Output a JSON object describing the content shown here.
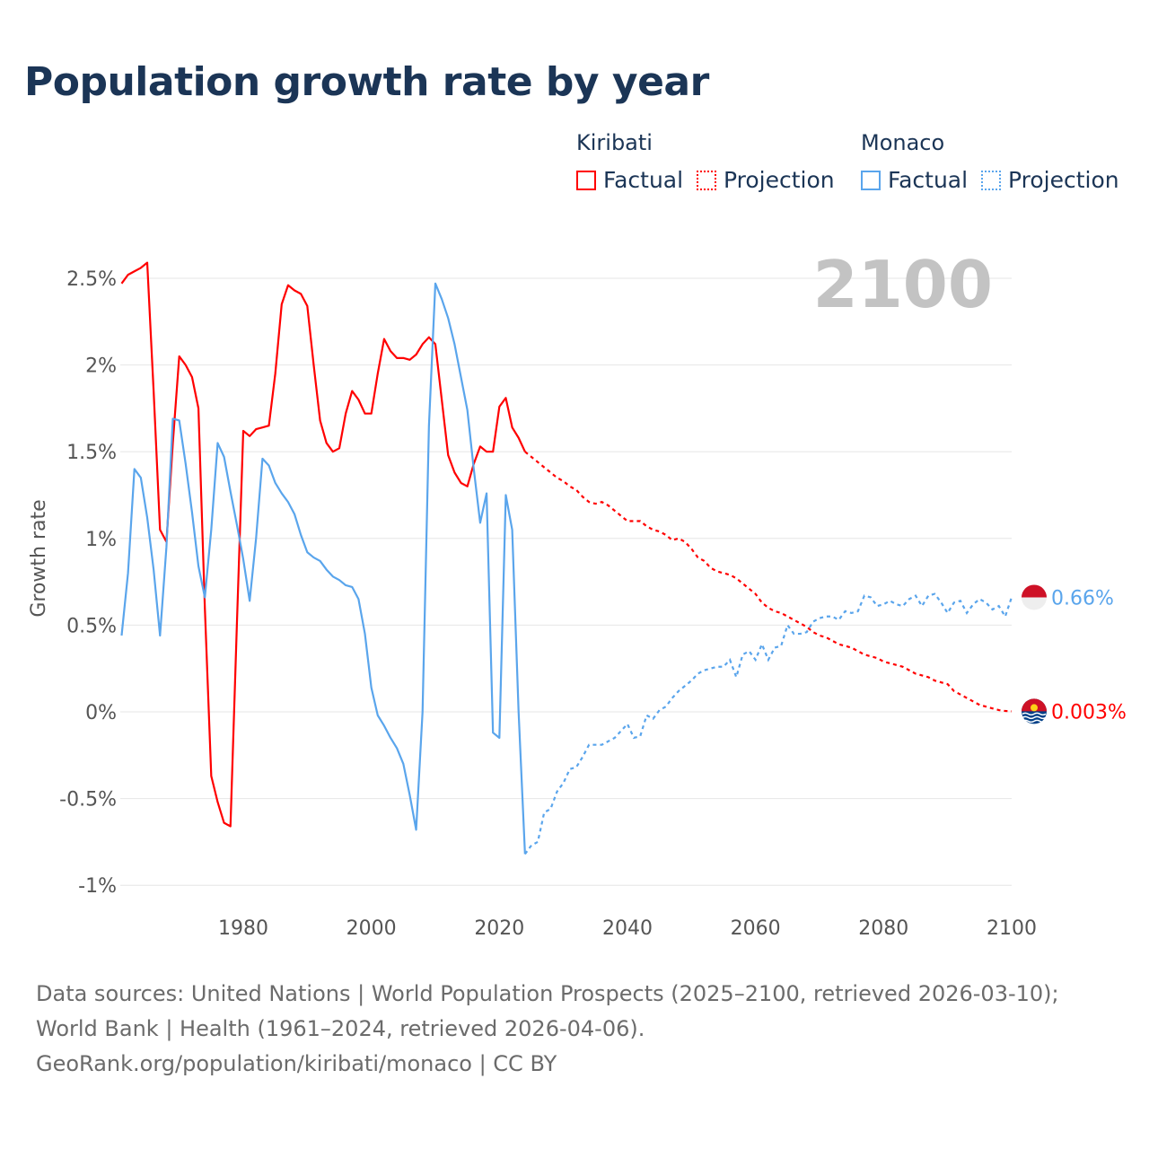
{
  "title": "Population growth rate by year",
  "legend": {
    "groups": [
      {
        "name": "Kiribati",
        "factual": "Factual",
        "projection": "Projection",
        "color": "#ff0000"
      },
      {
        "name": "Monaco",
        "factual": "Factual",
        "projection": "Projection",
        "color": "#5aa5ec"
      }
    ]
  },
  "footer": {
    "sources": "Data sources: United Nations | World Population Prospects (2025–2100, retrieved 2026-03-10); World Bank | Health (1961–2024, retrieved 2026-04-06).",
    "credit": "GeoRank.org/population/kiribati/monaco | CC BY"
  },
  "chart_data": {
    "type": "line",
    "title": "Population growth rate by year",
    "ylabel": "Growth rate",
    "xlabel": "",
    "year_label": "2100",
    "xlim": [
      1961,
      2100
    ],
    "ylim": [
      -1,
      2.6
    ],
    "x_ticks": [
      1980,
      2000,
      2020,
      2040,
      2060,
      2080,
      2100
    ],
    "y_ticks": [
      {
        "value": 2.5,
        "label": "2.5%"
      },
      {
        "value": 2,
        "label": "2%"
      },
      {
        "value": 1.5,
        "label": "1.5%"
      },
      {
        "value": 1,
        "label": "1%"
      },
      {
        "value": 0.5,
        "label": "0.5%"
      },
      {
        "value": 0,
        "label": "0%"
      },
      {
        "value": -0.5,
        "label": "-0.5%"
      },
      {
        "value": -1,
        "label": "-1%"
      }
    ],
    "grid": true,
    "series": [
      {
        "name": "Kiribati",
        "color": "#ff0000",
        "end_label": "0.003%",
        "flag": "kiribati-flag",
        "factual_start": 1961,
        "factual": [
          2.47,
          2.52,
          2.54,
          2.56,
          2.59,
          1.85,
          1.05,
          0.98,
          1.55,
          2.05,
          2.0,
          1.93,
          1.75,
          0.6,
          -0.37,
          -0.52,
          -0.64,
          -0.66,
          0.5,
          1.62,
          1.59,
          1.63,
          1.64,
          1.65,
          1.95,
          2.35,
          2.46,
          2.43,
          2.41,
          2.34,
          2.0,
          1.68,
          1.55,
          1.5,
          1.52,
          1.72,
          1.85,
          1.8,
          1.72,
          1.72,
          1.95,
          2.15,
          2.08,
          2.04,
          2.04,
          2.03,
          2.06,
          2.12,
          2.16,
          2.12,
          1.8,
          1.48,
          1.38,
          1.32,
          1.3,
          1.43,
          1.53,
          1.5,
          1.5,
          1.76,
          1.81,
          1.64,
          1.58,
          1.5
        ],
        "projection_start": 2025,
        "projection": [
          1.47,
          1.44,
          1.41,
          1.38,
          1.35,
          1.33,
          1.3,
          1.28,
          1.24,
          1.21,
          1.2,
          1.21,
          1.19,
          1.16,
          1.13,
          1.1,
          1.1,
          1.1,
          1.07,
          1.05,
          1.04,
          1.02,
          0.99,
          1.0,
          0.98,
          0.94,
          0.89,
          0.87,
          0.83,
          0.81,
          0.8,
          0.79,
          0.77,
          0.74,
          0.71,
          0.68,
          0.63,
          0.6,
          0.58,
          0.57,
          0.55,
          0.53,
          0.51,
          0.49,
          0.46,
          0.44,
          0.43,
          0.41,
          0.39,
          0.38,
          0.37,
          0.35,
          0.33,
          0.32,
          0.31,
          0.29,
          0.28,
          0.27,
          0.26,
          0.24,
          0.22,
          0.21,
          0.2,
          0.18,
          0.17,
          0.16,
          0.12,
          0.1,
          0.08,
          0.06,
          0.04,
          0.03,
          0.02,
          0.01,
          0.005,
          0.003
        ]
      },
      {
        "name": "Monaco",
        "color": "#5aa5ec",
        "end_label": "0.66%",
        "flag": "monaco-flag",
        "factual_start": 1961,
        "factual": [
          0.44,
          0.8,
          1.4,
          1.35,
          1.12,
          0.82,
          0.44,
          0.95,
          1.69,
          1.68,
          1.43,
          1.15,
          0.84,
          0.66,
          1.05,
          1.55,
          1.47,
          1.27,
          1.08,
          0.88,
          0.64,
          1.0,
          1.46,
          1.42,
          1.32,
          1.26,
          1.21,
          1.14,
          1.02,
          0.92,
          0.89,
          0.87,
          0.82,
          0.78,
          0.76,
          0.73,
          0.72,
          0.65,
          0.45,
          0.14,
          -0.02,
          -0.08,
          -0.15,
          -0.21,
          -0.3,
          -0.48,
          -0.68,
          0.0,
          1.65,
          2.47,
          2.38,
          2.27,
          2.12,
          1.93,
          1.74,
          1.4,
          1.09,
          1.26,
          -0.12,
          -0.15,
          1.25,
          1.05,
          0.0,
          -0.82
        ],
        "projection_start": 2025,
        "projection": [
          -0.77,
          -0.75,
          -0.58,
          -0.56,
          -0.46,
          -0.41,
          -0.33,
          -0.32,
          -0.26,
          -0.19,
          -0.19,
          -0.19,
          -0.17,
          -0.15,
          -0.11,
          -0.07,
          -0.15,
          -0.14,
          -0.02,
          -0.04,
          0.01,
          0.03,
          0.08,
          0.12,
          0.15,
          0.18,
          0.22,
          0.24,
          0.25,
          0.26,
          0.26,
          0.3,
          0.2,
          0.33,
          0.35,
          0.3,
          0.39,
          0.3,
          0.37,
          0.38,
          0.5,
          0.45,
          0.45,
          0.46,
          0.52,
          0.54,
          0.55,
          0.55,
          0.53,
          0.58,
          0.57,
          0.58,
          0.67,
          0.66,
          0.61,
          0.62,
          0.64,
          0.62,
          0.61,
          0.65,
          0.67,
          0.61,
          0.67,
          0.68,
          0.63,
          0.57,
          0.63,
          0.64,
          0.57,
          0.62,
          0.65,
          0.63,
          0.59,
          0.61,
          0.55,
          0.66
        ]
      }
    ]
  }
}
